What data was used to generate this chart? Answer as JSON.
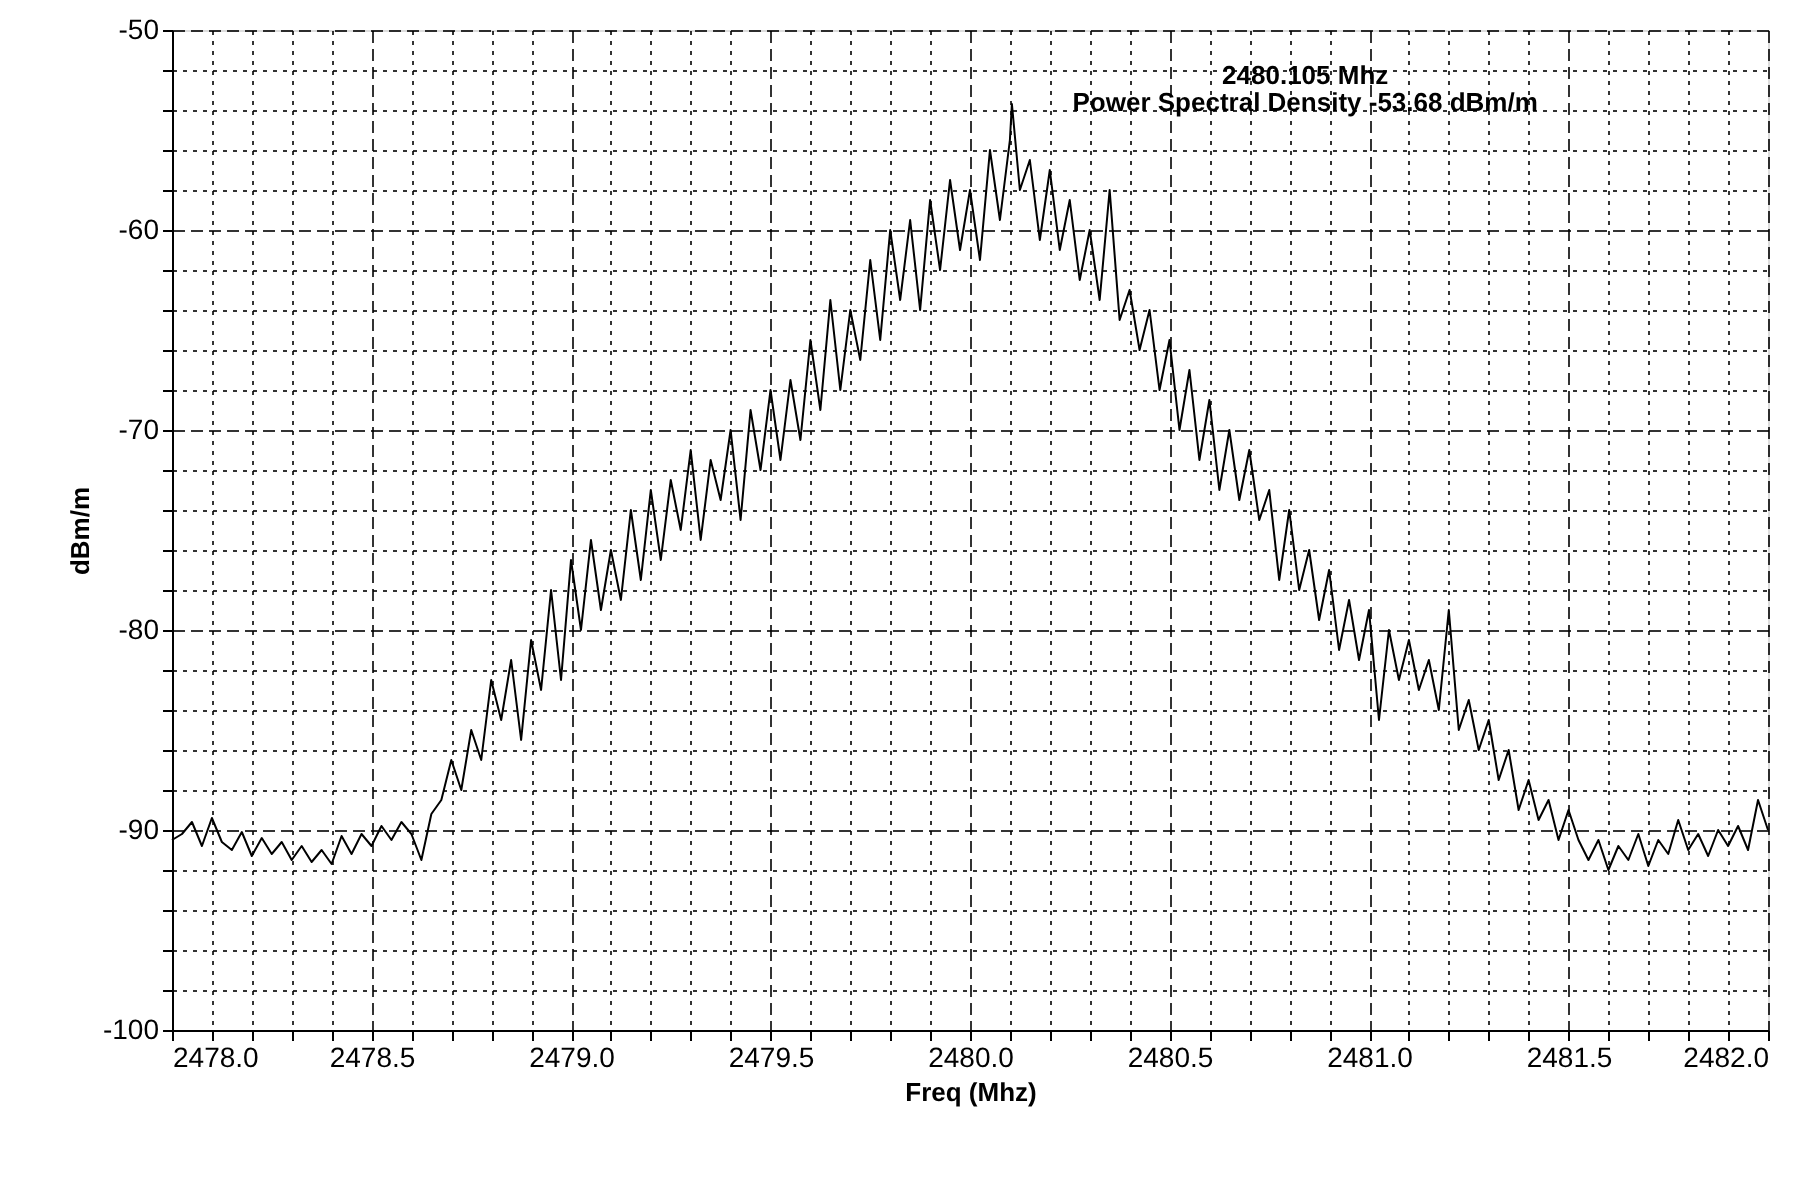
{
  "chart_data": {
    "type": "line",
    "xlabel": "Freq (Mhz)",
    "ylabel": "dBm/m",
    "annotations": [
      "2480.105 Mhz",
      "Power Spectral Density -53.68 dBm/m"
    ],
    "x": [
      2478.0,
      2478.025,
      2478.05,
      2478.075,
      2478.1,
      2478.125,
      2478.15,
      2478.175,
      2478.2,
      2478.225,
      2478.25,
      2478.275,
      2478.3,
      2478.325,
      2478.35,
      2478.375,
      2478.4,
      2478.425,
      2478.45,
      2478.475,
      2478.5,
      2478.525,
      2478.55,
      2478.575,
      2478.6,
      2478.625,
      2478.65,
      2478.675,
      2478.7,
      2478.725,
      2478.75,
      2478.775,
      2478.8,
      2478.825,
      2478.85,
      2478.875,
      2478.9,
      2478.925,
      2478.95,
      2478.975,
      2479.0,
      2479.025,
      2479.05,
      2479.075,
      2479.1,
      2479.125,
      2479.15,
      2479.175,
      2479.2,
      2479.225,
      2479.25,
      2479.275,
      2479.3,
      2479.325,
      2479.35,
      2479.375,
      2479.4,
      2479.425,
      2479.45,
      2479.475,
      2479.5,
      2479.525,
      2479.55,
      2479.575,
      2479.6,
      2479.625,
      2479.65,
      2479.675,
      2479.7,
      2479.725,
      2479.75,
      2479.775,
      2479.8,
      2479.825,
      2479.85,
      2479.875,
      2479.9,
      2479.925,
      2479.95,
      2479.975,
      2480.0,
      2480.025,
      2480.05,
      2480.075,
      2480.1,
      2480.105,
      2480.125,
      2480.15,
      2480.175,
      2480.2,
      2480.225,
      2480.25,
      2480.275,
      2480.3,
      2480.325,
      2480.35,
      2480.375,
      2480.4,
      2480.425,
      2480.45,
      2480.475,
      2480.5,
      2480.525,
      2480.55,
      2480.575,
      2480.6,
      2480.625,
      2480.65,
      2480.675,
      2480.7,
      2480.725,
      2480.75,
      2480.775,
      2480.8,
      2480.825,
      2480.85,
      2480.875,
      2480.9,
      2480.925,
      2480.95,
      2480.975,
      2481.0,
      2481.025,
      2481.05,
      2481.075,
      2481.1,
      2481.125,
      2481.15,
      2481.175,
      2481.2,
      2481.225,
      2481.25,
      2481.275,
      2481.3,
      2481.325,
      2481.35,
      2481.375,
      2481.4,
      2481.425,
      2481.45,
      2481.475,
      2481.5,
      2481.525,
      2481.55,
      2481.575,
      2481.6,
      2481.625,
      2481.65,
      2481.675,
      2481.7,
      2481.725,
      2481.75,
      2481.775,
      2481.8,
      2481.825,
      2481.85,
      2481.875,
      2481.9,
      2481.925,
      2481.95,
      2481.975,
      2482.0
    ],
    "series": [
      {
        "color": "#000000",
        "values": [
          -90.5,
          -90.2,
          -89.6,
          -90.8,
          -89.4,
          -90.6,
          -91.0,
          -90.1,
          -91.3,
          -90.4,
          -91.2,
          -90.6,
          -91.5,
          -90.8,
          -91.6,
          -91.0,
          -91.7,
          -90.3,
          -91.2,
          -90.2,
          -90.8,
          -89.8,
          -90.5,
          -89.6,
          -90.2,
          -91.5,
          -89.2,
          -88.5,
          -86.5,
          -88.0,
          -85.0,
          -86.5,
          -82.5,
          -84.5,
          -81.5,
          -85.5,
          -80.5,
          -83.0,
          -78.0,
          -82.5,
          -76.5,
          -80.0,
          -75.5,
          -79.0,
          -76.0,
          -78.5,
          -74.0,
          -77.5,
          -73.0,
          -76.5,
          -72.5,
          -75.0,
          -71.0,
          -75.5,
          -71.5,
          -73.5,
          -70.0,
          -74.5,
          -69.0,
          -72.0,
          -68.0,
          -71.5,
          -67.5,
          -70.5,
          -65.5,
          -69.0,
          -63.5,
          -68.0,
          -64.0,
          -66.5,
          -61.5,
          -65.5,
          -60.0,
          -63.5,
          -59.5,
          -64.0,
          -58.5,
          -62.0,
          -57.5,
          -61.0,
          -58.0,
          -61.5,
          -56.0,
          -59.5,
          -55.5,
          -53.7,
          -58.0,
          -56.5,
          -60.5,
          -57.0,
          -61.0,
          -58.5,
          -62.5,
          -60.0,
          -63.5,
          -58.0,
          -64.5,
          -63.0,
          -66.0,
          -64.0,
          -68.0,
          -65.5,
          -70.0,
          -67.0,
          -71.5,
          -68.5,
          -73.0,
          -70.0,
          -73.5,
          -71.0,
          -74.5,
          -73.0,
          -77.5,
          -74.0,
          -78.0,
          -76.0,
          -79.5,
          -77.0,
          -81.0,
          -78.5,
          -81.5,
          -79.0,
          -84.5,
          -80.0,
          -82.5,
          -80.5,
          -83.0,
          -81.5,
          -84.0,
          -79.0,
          -85.0,
          -83.5,
          -86.0,
          -84.5,
          -87.5,
          -86.0,
          -89.0,
          -87.5,
          -89.5,
          -88.5,
          -90.5,
          -89.0,
          -90.5,
          -91.5,
          -90.5,
          -92.0,
          -90.8,
          -91.5,
          -90.2,
          -91.8,
          -90.5,
          -91.2,
          -89.5,
          -91.0,
          -90.2,
          -91.3,
          -90.0,
          -90.8,
          -89.8,
          -91.0,
          -88.5,
          -90.0
        ]
      }
    ],
    "xlim": [
      2478.0,
      2482.0
    ],
    "xticks": [
      {
        "value": 2478.0,
        "label": "2478.0"
      },
      {
        "value": 2478.1,
        "label": null
      },
      {
        "value": 2478.2,
        "label": null
      },
      {
        "value": 2478.3,
        "label": null
      },
      {
        "value": 2478.4,
        "label": null
      },
      {
        "value": 2478.5,
        "label": "2478.5"
      },
      {
        "value": 2478.6,
        "label": null
      },
      {
        "value": 2478.7,
        "label": null
      },
      {
        "value": 2478.8,
        "label": null
      },
      {
        "value": 2478.9,
        "label": null
      },
      {
        "value": 2479.0,
        "label": "2479.0"
      },
      {
        "value": 2479.1,
        "label": null
      },
      {
        "value": 2479.2,
        "label": null
      },
      {
        "value": 2479.3,
        "label": null
      },
      {
        "value": 2479.4,
        "label": null
      },
      {
        "value": 2479.5,
        "label": "2479.5"
      },
      {
        "value": 2479.6,
        "label": null
      },
      {
        "value": 2479.7,
        "label": null
      },
      {
        "value": 2479.8,
        "label": null
      },
      {
        "value": 2479.9,
        "label": null
      },
      {
        "value": 2480.0,
        "label": "2480.0"
      },
      {
        "value": 2480.1,
        "label": null
      },
      {
        "value": 2480.2,
        "label": null
      },
      {
        "value": 2480.3,
        "label": null
      },
      {
        "value": 2480.4,
        "label": null
      },
      {
        "value": 2480.5,
        "label": "2480.5"
      },
      {
        "value": 2480.6,
        "label": null
      },
      {
        "value": 2480.7,
        "label": null
      },
      {
        "value": 2480.8,
        "label": null
      },
      {
        "value": 2480.9,
        "label": null
      },
      {
        "value": 2481.0,
        "label": "2481.0"
      },
      {
        "value": 2481.1,
        "label": null
      },
      {
        "value": 2481.2,
        "label": null
      },
      {
        "value": 2481.3,
        "label": null
      },
      {
        "value": 2481.4,
        "label": null
      },
      {
        "value": 2481.5,
        "label": "2481.5"
      },
      {
        "value": 2481.6,
        "label": null
      },
      {
        "value": 2481.7,
        "label": null
      },
      {
        "value": 2481.8,
        "label": null
      },
      {
        "value": 2481.9,
        "label": null
      },
      {
        "value": 2482.0,
        "label": "2482.0"
      }
    ],
    "ylim": [
      -100,
      -50
    ],
    "yticks": [
      -100,
      {
        "value": -98,
        "label": null
      },
      {
        "value": -96,
        "label": null
      },
      {
        "value": -94,
        "label": null
      },
      {
        "value": -92,
        "label": null
      },
      -90,
      {
        "value": -88,
        "label": null
      },
      {
        "value": -86,
        "label": null
      },
      {
        "value": -84,
        "label": null
      },
      {
        "value": -82,
        "label": null
      },
      -80,
      {
        "value": -78,
        "label": null
      },
      {
        "value": -76,
        "label": null
      },
      {
        "value": -74,
        "label": null
      },
      {
        "value": -72,
        "label": null
      },
      -70,
      {
        "value": -68,
        "label": null
      },
      {
        "value": -66,
        "label": null
      },
      {
        "value": -64,
        "label": null
      },
      {
        "value": -62,
        "label": null
      },
      -60,
      {
        "value": -58,
        "label": null
      },
      {
        "value": -56,
        "label": null
      },
      {
        "value": -54,
        "label": null
      },
      {
        "value": -52,
        "label": null
      },
      -50
    ],
    "grid": true,
    "marker": "none",
    "line_style": "solid"
  }
}
